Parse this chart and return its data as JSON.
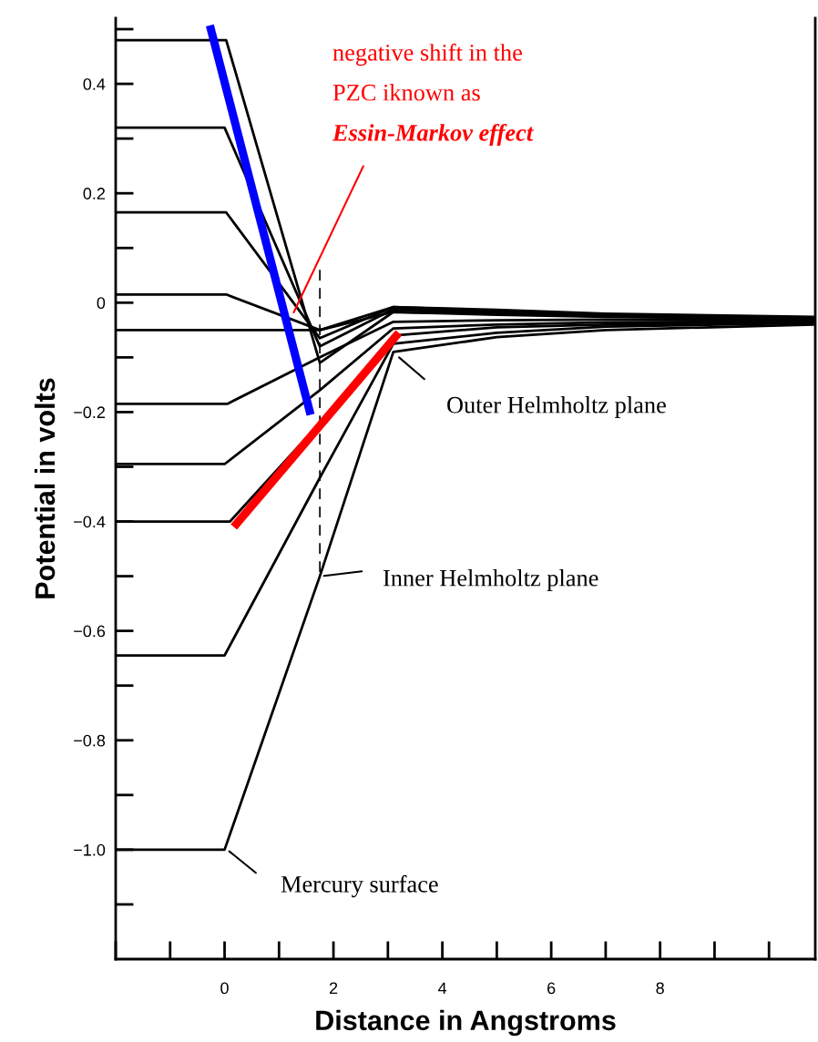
{
  "chart_data": {
    "type": "line",
    "xlabel": "Distance in Angstroms",
    "ylabel": "Potential in volts",
    "xlim": [
      -2,
      10.85
    ],
    "ylim": [
      -1.2,
      0.52
    ],
    "xticks": [
      0,
      2,
      4,
      6,
      8
    ],
    "yticks": [
      {
        "value": -1.0,
        "label": "−1.0"
      },
      {
        "value": -0.8,
        "label": "−0.8"
      },
      {
        "value": -0.6,
        "label": "−0.6"
      },
      {
        "value": -0.4,
        "label": "−0.4"
      },
      {
        "value": -0.2,
        "label": "−0.2"
      },
      0,
      0.2,
      0.4
    ],
    "series": [
      {
        "color": "#000000",
        "x": [
          -2,
          0.03,
          1.75,
          3.1,
          5,
          7,
          10.83
        ],
        "values": [
          0.48,
          0.48,
          -0.11,
          -0.017,
          -0.022,
          -0.026,
          -0.03
        ]
      },
      {
        "color": "#000000",
        "x": [
          -2,
          0.0,
          1.75,
          3.1,
          5,
          7,
          10.83
        ],
        "values": [
          0.32,
          0.32,
          -0.08,
          -0.012,
          -0.018,
          -0.024,
          -0.028
        ]
      },
      {
        "color": "#000000",
        "x": [
          -2,
          0.03,
          1.75,
          3.1,
          5,
          7,
          10.83
        ],
        "values": [
          0.165,
          0.165,
          -0.065,
          -0.008,
          -0.015,
          -0.022,
          -0.027
        ]
      },
      {
        "color": "#000000",
        "x": [
          -2,
          0.03,
          1.75,
          3.1,
          5,
          7,
          10.83
        ],
        "values": [
          0.015,
          0.015,
          -0.05,
          -0.008,
          -0.013,
          -0.02,
          -0.026
        ]
      },
      {
        "color": "#000000",
        "x": [
          -2,
          0.0,
          1.75,
          3.1,
          5,
          7,
          10.83
        ],
        "values": [
          -0.05,
          -0.05,
          -0.05,
          -0.017,
          -0.02,
          -0.025,
          -0.03
        ]
      },
      {
        "color": "#000000",
        "x": [
          -2,
          0.05,
          1.75,
          3.1,
          5,
          7,
          10.83
        ],
        "values": [
          -0.185,
          -0.185,
          -0.1,
          -0.035,
          -0.032,
          -0.031,
          -0.032
        ]
      },
      {
        "color": "#000000",
        "x": [
          -2,
          0.0,
          1.75,
          3.1,
          5,
          7,
          10.83
        ],
        "values": [
          -0.295,
          -0.295,
          -0.16,
          -0.047,
          -0.04,
          -0.036,
          -0.034
        ]
      },
      {
        "color": "#000000",
        "x": [
          -2,
          0.1,
          1.75,
          3.1,
          5,
          7,
          10.83
        ],
        "values": [
          -0.4,
          -0.4,
          -0.22,
          -0.06,
          -0.045,
          -0.04,
          -0.035
        ]
      },
      {
        "color": "#000000",
        "x": [
          -2,
          0.0,
          1.75,
          3.1,
          5,
          7,
          10.83
        ],
        "values": [
          -0.645,
          -0.645,
          -0.32,
          -0.075,
          -0.055,
          -0.044,
          -0.037
        ]
      },
      {
        "color": "#000000",
        "x": [
          -2,
          0.0,
          1.75,
          3.1,
          5,
          7,
          10.83
        ],
        "values": [
          -1.0,
          -1.0,
          -0.5,
          -0.09,
          -0.063,
          -0.05,
          -0.04
        ]
      },
      {
        "color": "#000000",
        "line_style": "dashed",
        "x": [
          1.75,
          1.75
        ],
        "values": [
          0.06,
          -0.5
        ]
      },
      {
        "color": "#0000ff",
        "x": [
          -0.27,
          1.58
        ],
        "values": [
          0.507,
          -0.205
        ]
      },
      {
        "color": "#ff0000",
        "x": [
          0.17,
          3.2
        ],
        "values": [
          -0.41,
          -0.055
        ]
      }
    ],
    "annotations": [
      "negative shift in the",
      "PZC iknown as",
      {
        "text": "Essin-Markov effect",
        "x": 1.25,
        "y": -0.022
      },
      {
        "text": "Outer Helmholtz plane",
        "x": 3.17,
        "y": -0.097
      },
      {
        "text": "Inner Helmholtz plane",
        "x": 1.78,
        "y": -0.5
      },
      {
        "text": "Mercury surface",
        "x": 0.05,
        "y": -1.0
      }
    ]
  }
}
